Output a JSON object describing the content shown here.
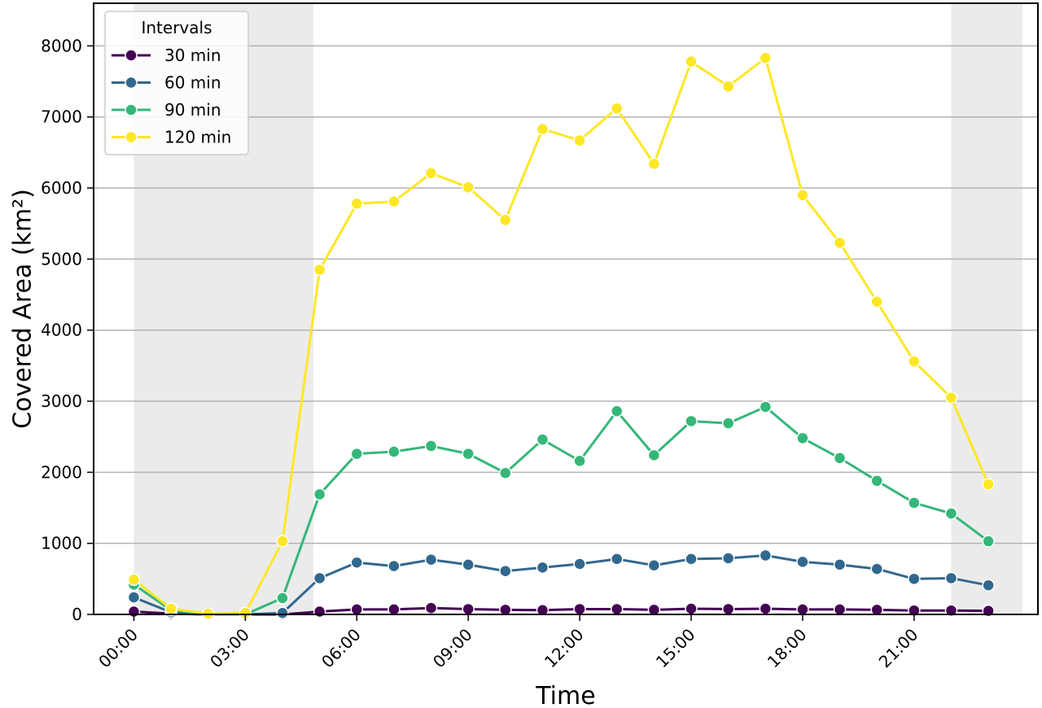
{
  "chart_data": {
    "type": "line",
    "xlabel": "Time",
    "ylabel": "Covered Area (km²)",
    "x": [
      "00:00",
      "01:00",
      "02:00",
      "03:00",
      "04:00",
      "05:00",
      "06:00",
      "07:00",
      "08:00",
      "09:00",
      "10:00",
      "11:00",
      "12:00",
      "13:00",
      "14:00",
      "15:00",
      "16:00",
      "17:00",
      "18:00",
      "19:00",
      "20:00",
      "21:00",
      "22:00",
      "23:00"
    ],
    "xtick_labels": [
      "00:00",
      "03:00",
      "06:00",
      "09:00",
      "12:00",
      "15:00",
      "18:00",
      "21:00"
    ],
    "yticks": [
      0,
      1000,
      2000,
      3000,
      4000,
      5000,
      6000,
      7000,
      8000
    ],
    "ylim": [
      0,
      8600
    ],
    "xlim": [
      "-01:05",
      "24:20"
    ],
    "grid": "horizontal",
    "shaded_night_periods": [
      [
        "00:00",
        "04:50"
      ],
      [
        "22:00",
        "23:55"
      ]
    ],
    "legend": {
      "title": "Intervals",
      "placement": "top-left"
    },
    "series": [
      {
        "name": "30 min",
        "color": "#440154",
        "values": [
          40,
          10,
          0,
          0,
          0,
          40,
          70,
          70,
          90,
          75,
          65,
          60,
          75,
          75,
          65,
          80,
          75,
          80,
          70,
          70,
          65,
          55,
          55,
          50
        ]
      },
      {
        "name": "60 min",
        "color": "#31688e",
        "values": [
          240,
          30,
          0,
          0,
          20,
          510,
          730,
          680,
          770,
          700,
          610,
          660,
          710,
          780,
          690,
          780,
          790,
          830,
          740,
          700,
          640,
          500,
          510,
          410
        ]
      },
      {
        "name": "90 min",
        "color": "#35b779",
        "values": [
          420,
          60,
          0,
          0,
          230,
          1690,
          2260,
          2290,
          2370,
          2260,
          1990,
          2460,
          2160,
          2860,
          2240,
          2720,
          2690,
          2920,
          2480,
          2200,
          1880,
          1570,
          1420,
          1030
        ]
      },
      {
        "name": "120 min",
        "color": "#fde725",
        "values": [
          490,
          80,
          10,
          20,
          1030,
          4850,
          5780,
          5810,
          6210,
          6010,
          5550,
          6830,
          6670,
          7120,
          6340,
          7780,
          7430,
          7830,
          5900,
          5230,
          4400,
          3560,
          3050,
          1830
        ]
      }
    ]
  }
}
